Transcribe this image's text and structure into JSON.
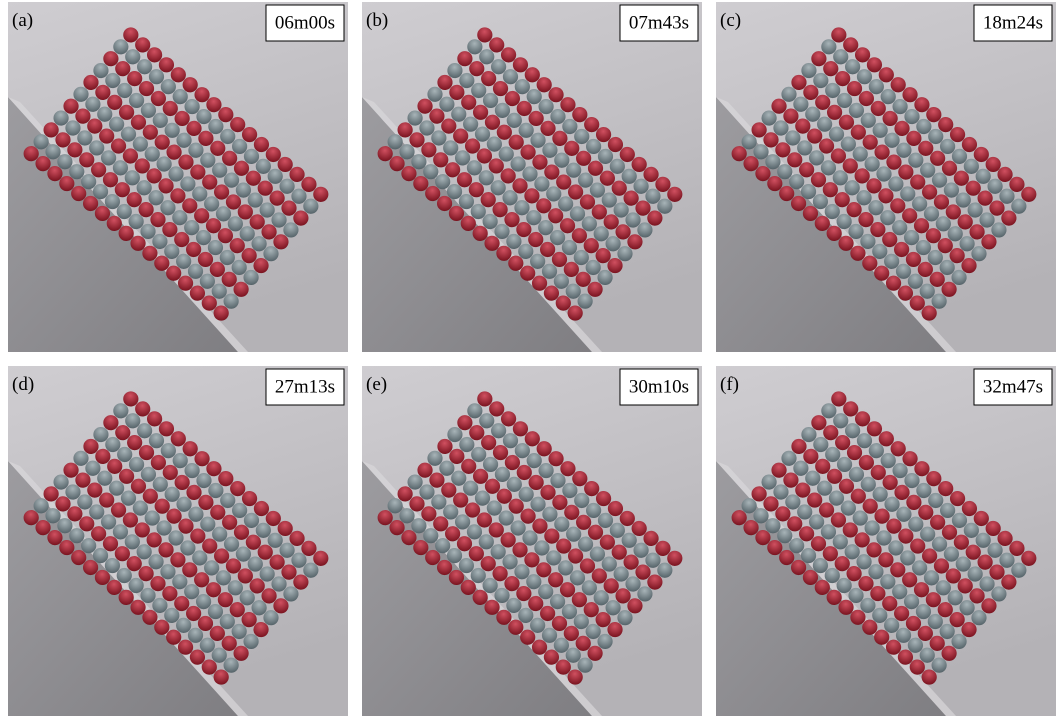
{
  "panels": [
    {
      "label": "(a)",
      "time": "06m00s"
    },
    {
      "label": "(b)",
      "time": "07m43s"
    },
    {
      "label": "(c)",
      "time": "18m24s"
    },
    {
      "label": "(d)",
      "time": "27m13s"
    },
    {
      "label": "(e)",
      "time": "30m10s"
    },
    {
      "label": "(f)",
      "time": "32m47s"
    }
  ]
}
